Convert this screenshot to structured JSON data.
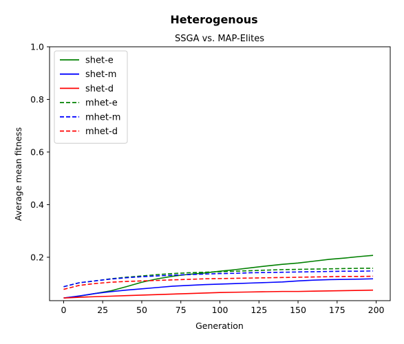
{
  "chart_data": {
    "type": "line",
    "suptitle": "Heterogenous",
    "title": "SSGA vs. MAP-Elites",
    "xlabel": "Generation",
    "ylabel": "Average mean fitness",
    "xlim": [
      -9,
      209
    ],
    "ylim": [
      0.035,
      1.0
    ],
    "xticks": [
      0,
      25,
      50,
      75,
      100,
      125,
      150,
      175,
      200
    ],
    "yticks": [
      0.2,
      0.4,
      0.6,
      0.8,
      1.0
    ],
    "ytick_labels": [
      "0.2",
      "0.4",
      "0.6",
      "0.8",
      "1.0"
    ],
    "grid": false,
    "legend_position": "top-left",
    "x": [
      0,
      10,
      20,
      30,
      40,
      50,
      60,
      70,
      80,
      90,
      100,
      110,
      120,
      130,
      140,
      150,
      160,
      170,
      180,
      190,
      198
    ],
    "series": [
      {
        "name": "shet-e",
        "color": "#008000",
        "dash": "solid",
        "values": [
          0.045,
          0.052,
          0.062,
          0.072,
          0.088,
          0.105,
          0.118,
          0.128,
          0.135,
          0.14,
          0.147,
          0.153,
          0.16,
          0.167,
          0.173,
          0.178,
          0.185,
          0.192,
          0.197,
          0.203,
          0.207
        ]
      },
      {
        "name": "shet-m",
        "color": "#0000ff",
        "dash": "solid",
        "values": [
          0.045,
          0.053,
          0.062,
          0.069,
          0.075,
          0.08,
          0.085,
          0.09,
          0.093,
          0.096,
          0.098,
          0.1,
          0.102,
          0.104,
          0.106,
          0.11,
          0.113,
          0.115,
          0.116,
          0.117,
          0.118
        ]
      },
      {
        "name": "shet-d",
        "color": "#ff0000",
        "dash": "solid",
        "values": [
          0.045,
          0.048,
          0.05,
          0.052,
          0.054,
          0.056,
          0.058,
          0.06,
          0.062,
          0.064,
          0.066,
          0.067,
          0.068,
          0.069,
          0.07,
          0.07,
          0.071,
          0.072,
          0.073,
          0.074,
          0.075
        ]
      },
      {
        "name": "mhet-e",
        "color": "#008000",
        "dash": "dashed",
        "values": [
          0.088,
          0.103,
          0.11,
          0.118,
          0.124,
          0.129,
          0.134,
          0.138,
          0.141,
          0.143,
          0.145,
          0.147,
          0.149,
          0.151,
          0.153,
          0.154,
          0.155,
          0.156,
          0.157,
          0.158,
          0.158
        ]
      },
      {
        "name": "mhet-m",
        "color": "#0000ff",
        "dash": "dashed",
        "values": [
          0.088,
          0.103,
          0.11,
          0.117,
          0.122,
          0.126,
          0.129,
          0.132,
          0.134,
          0.136,
          0.138,
          0.139,
          0.141,
          0.142,
          0.143,
          0.144,
          0.145,
          0.146,
          0.147,
          0.147,
          0.148
        ]
      },
      {
        "name": "mhet-d",
        "color": "#ff0000",
        "dash": "dashed",
        "values": [
          0.078,
          0.093,
          0.1,
          0.105,
          0.108,
          0.11,
          0.112,
          0.114,
          0.116,
          0.118,
          0.119,
          0.12,
          0.121,
          0.122,
          0.123,
          0.124,
          0.125,
          0.126,
          0.127,
          0.127,
          0.128
        ]
      }
    ]
  }
}
